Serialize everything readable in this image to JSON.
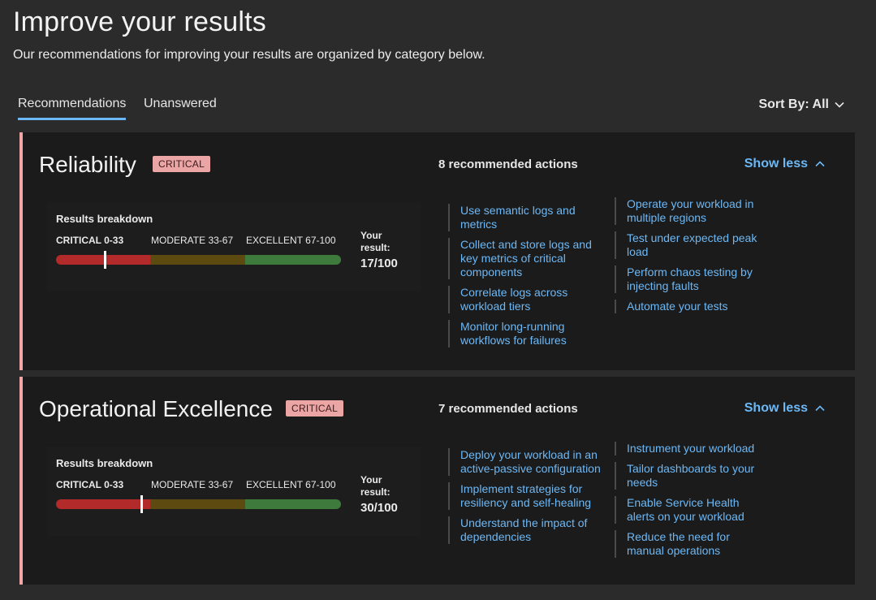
{
  "page": {
    "title": "Improve your results",
    "subtitle": "Our recommendations for improving your results are organized by category below."
  },
  "tabs": [
    {
      "label": "Recommendations",
      "active": true
    },
    {
      "label": "Unanswered",
      "active": false
    }
  ],
  "sort": {
    "label": "Sort By: All"
  },
  "colors": {
    "accent": "#6cb8f6",
    "critical": "#b22a2a",
    "moderate": "#5c4a10",
    "excellent": "#3e7a3b",
    "badge": "#eba5a5"
  },
  "cards": [
    {
      "title": "Reliability",
      "badge": "CRITICAL",
      "actions_count": "8 recommended actions",
      "toggle": "Show less",
      "breakdown": {
        "title": "Results breakdown",
        "critical": "CRITICAL 0-33",
        "moderate": "MODERATE 33-67",
        "excellent": "EXCELLENT 67-100",
        "your_label": "Your result:",
        "your_value": "17/100",
        "score": 17
      },
      "links_left": [
        "Use semantic logs and metrics",
        "Collect and store logs and key metrics of critical components",
        "Correlate logs across workload tiers",
        "Monitor long-running workflows for failures"
      ],
      "links_right": [
        "Operate your workload in multiple regions",
        "Test under expected peak load",
        "Perform chaos testing by injecting faults",
        "Automate your tests"
      ]
    },
    {
      "title": "Operational Excellence",
      "badge": "CRITICAL",
      "actions_count": "7 recommended actions",
      "toggle": "Show less",
      "breakdown": {
        "title": "Results breakdown",
        "critical": "CRITICAL 0-33",
        "moderate": "MODERATE 33-67",
        "excellent": "EXCELLENT 67-100",
        "your_label": "Your result:",
        "your_value": "30/100",
        "score": 30
      },
      "links_left": [
        "Deploy your workload in an active-passive configuration",
        "Implement strategies for resiliency and self-healing",
        "Understand the impact of dependencies"
      ],
      "links_right": [
        "Instrument your workload",
        "Tailor dashboards to your needs",
        "Enable Service Health alerts on your workload",
        "Reduce the need for manual operations"
      ]
    }
  ]
}
